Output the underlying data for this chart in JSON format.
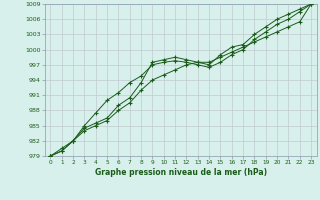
{
  "xlabel": "Graphe pression niveau de la mer (hPa)",
  "bg_color": "#d8f0ec",
  "plot_bg_color": "#d8f0ec",
  "grid_color": "#c0c8d0",
  "line_color": "#1a5c1a",
  "spine_color": "#8899aa",
  "xlim": [
    -0.5,
    23.5
  ],
  "ylim": [
    979,
    1009
  ],
  "yticks": [
    979,
    982,
    985,
    988,
    991,
    994,
    997,
    1000,
    1003,
    1006,
    1009
  ],
  "xticks": [
    0,
    1,
    2,
    3,
    4,
    5,
    6,
    7,
    8,
    9,
    10,
    11,
    12,
    13,
    14,
    15,
    16,
    17,
    18,
    19,
    20,
    21,
    22,
    23
  ],
  "series1": [
    979,
    980.5,
    982,
    984.5,
    985.5,
    986.5,
    989,
    990.5,
    993.5,
    997.5,
    998,
    998.5,
    998,
    997.5,
    997,
    999,
    1000.5,
    1001,
    1003,
    1004.5,
    1006,
    1007,
    1008,
    1009
  ],
  "series2": [
    979,
    980,
    982,
    985,
    987.5,
    990,
    991.5,
    993.5,
    994.8,
    997,
    997.5,
    997.8,
    997.5,
    997,
    996.5,
    997.5,
    999,
    1000,
    1002,
    1003.5,
    1005,
    1006,
    1007.5,
    1009
  ],
  "series3": [
    979,
    980,
    982,
    984,
    985,
    986,
    988,
    989.5,
    992,
    994,
    995,
    996,
    997,
    997.5,
    997.5,
    998.5,
    999.5,
    1000.5,
    1001.5,
    1002.5,
    1003.5,
    1004.5,
    1005.5,
    1009
  ]
}
